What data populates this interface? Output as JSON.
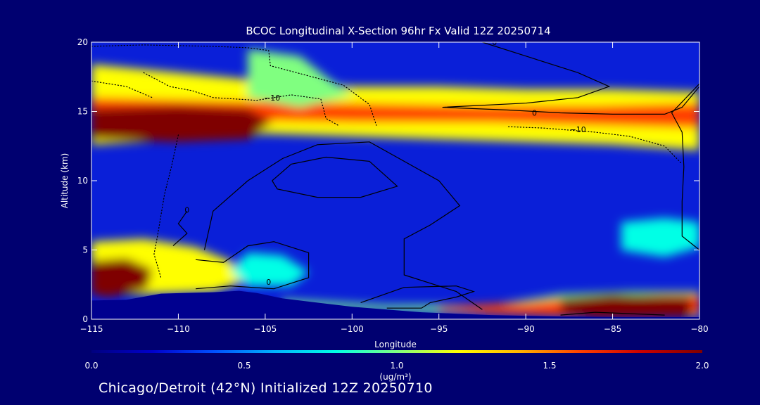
{
  "chart_data": {
    "type": "heatmap",
    "title": "BCOC Longitudinal X-Section 96hr  Fx Valid 12Z 20250714",
    "xlabel": "Longitude",
    "ylabel": "Altitude (km)",
    "xlim": [
      -115,
      -80
    ],
    "ylim": [
      0,
      20
    ],
    "x_ticks": [
      -115,
      -110,
      -105,
      -100,
      -95,
      -90,
      -85,
      -80
    ],
    "x_tick_labels": [
      "−115",
      "−110",
      "−105",
      "−100",
      "−95",
      "−90",
      "−85",
      "−80"
    ],
    "y_ticks": [
      0,
      5,
      10,
      15,
      20
    ],
    "y_tick_labels": [
      "0",
      "5",
      "10",
      "15",
      "20"
    ],
    "colorbar": {
      "min": 0.0,
      "max": 2.0,
      "ticks": [
        0.0,
        0.5,
        1.0,
        1.5,
        2.0
      ],
      "tick_labels": [
        "0.0",
        "0.5",
        "1.0",
        "1.5",
        "2.0"
      ],
      "unit_label": "(ug/m³)",
      "colors": [
        "#00007f",
        "#0000cc",
        "#0050ff",
        "#00b4ff",
        "#00ffe6",
        "#80ff80",
        "#ffff00",
        "#ffb400",
        "#ff4000",
        "#cc0000",
        "#7f0000"
      ]
    },
    "regions": [
      {
        "name": "stratospheric-band",
        "value": 1.2,
        "points": [
          [
            -115,
            18.4
          ],
          [
            -110,
            17.8
          ],
          [
            -105,
            17.2
          ],
          [
            -100,
            16.8
          ],
          [
            -95,
            16.8
          ],
          [
            -90,
            16.6
          ],
          [
            -85,
            16.6
          ],
          [
            -80,
            16.4
          ],
          [
            -80,
            12.2
          ],
          [
            -85,
            12.6
          ],
          [
            -90,
            12.8
          ],
          [
            -95,
            13.0
          ],
          [
            -100,
            13.2
          ],
          [
            -105,
            13.4
          ],
          [
            -110,
            13.0
          ],
          [
            -115,
            12.6
          ]
        ]
      },
      {
        "name": "band-core",
        "value": 1.55,
        "points": [
          [
            -115,
            16.0
          ],
          [
            -108,
            15.8
          ],
          [
            -100,
            15.6
          ],
          [
            -92,
            15.4
          ],
          [
            -86,
            15.4
          ],
          [
            -80,
            15.6
          ],
          [
            -80,
            13.8
          ],
          [
            -86,
            14.0
          ],
          [
            -92,
            14.2
          ],
          [
            -100,
            14.2
          ],
          [
            -108,
            14.4
          ],
          [
            -115,
            14.2
          ]
        ]
      },
      {
        "name": "west-hotspot",
        "value": 2.0,
        "points": [
          [
            -115,
            15.2
          ],
          [
            -110,
            15.4
          ],
          [
            -106,
            15.2
          ],
          [
            -104.6,
            14.2
          ],
          [
            -106,
            13.0
          ],
          [
            -110,
            12.8
          ],
          [
            -115,
            13.0
          ]
        ]
      },
      {
        "name": "cyan-ridge",
        "value": 0.9,
        "points": [
          [
            -106,
            19.5
          ],
          [
            -103,
            19.0
          ],
          [
            -101.5,
            17.5
          ],
          [
            -100,
            16.2
          ],
          [
            -103,
            15.3
          ],
          [
            -106,
            16.0
          ]
        ]
      },
      {
        "name": "surface-west",
        "value": 1.2,
        "points": [
          [
            -115,
            5.6
          ],
          [
            -112,
            5.8
          ],
          [
            -109,
            5.2
          ],
          [
            -107,
            4.2
          ],
          [
            -106,
            2.8
          ],
          [
            -108,
            2.0
          ],
          [
            -112,
            1.8
          ],
          [
            -115,
            2.0
          ]
        ]
      },
      {
        "name": "surface-west-core",
        "value": 1.9,
        "points": [
          [
            -115,
            4.2
          ],
          [
            -113,
            4.4
          ],
          [
            -111.5,
            3.6
          ],
          [
            -111.8,
            2.2
          ],
          [
            -114,
            1.6
          ],
          [
            -115,
            1.8
          ]
        ]
      },
      {
        "name": "plume-104",
        "value": 0.75,
        "points": [
          [
            -106,
            4.8
          ],
          [
            -104,
            4.6
          ],
          [
            -102.5,
            3.4
          ],
          [
            -103.5,
            2.4
          ],
          [
            -106,
            2.4
          ],
          [
            -107,
            3.5
          ]
        ]
      },
      {
        "name": "boundary-layer",
        "value": 1.0,
        "points": [
          [
            -104,
            1.4
          ],
          [
            -98,
            1.0
          ],
          [
            -92,
            1.0
          ],
          [
            -88,
            1.8
          ],
          [
            -84,
            2.0
          ],
          [
            -80,
            2.0
          ],
          [
            -80,
            0.2
          ],
          [
            -86,
            0.2
          ],
          [
            -92,
            0.4
          ],
          [
            -98,
            0.6
          ],
          [
            -104,
            0.9
          ]
        ]
      },
      {
        "name": "boundary-core",
        "value": 1.6,
        "points": [
          [
            -95,
            0.9
          ],
          [
            -90,
            1.2
          ],
          [
            -87,
            1.6
          ],
          [
            -82,
            1.8
          ],
          [
            -80,
            1.8
          ],
          [
            -80,
            0.3
          ],
          [
            -86,
            0.2
          ],
          [
            -92,
            0.4
          ],
          [
            -95,
            0.6
          ]
        ]
      },
      {
        "name": "east-hotspot",
        "value": 2.0,
        "points": [
          [
            -88,
            1.5
          ],
          [
            -85,
            1.8
          ],
          [
            -80.5,
            1.6
          ],
          [
            -80.5,
            0.2
          ],
          [
            -86,
            0.1
          ],
          [
            -88,
            0.5
          ]
        ]
      },
      {
        "name": "east-midlevel",
        "value": 0.75,
        "points": [
          [
            -84.5,
            7.0
          ],
          [
            -82,
            7.3
          ],
          [
            -80,
            7.0
          ],
          [
            -80,
            5.2
          ],
          [
            -82,
            4.5
          ],
          [
            -84.5,
            5.0
          ]
        ]
      }
    ],
    "contours": [
      {
        "label": "0",
        "style": "solid",
        "label_at": [
          -91.8,
          20.0
        ],
        "points": [
          [
            -92.5,
            20
          ],
          [
            -90,
            19
          ],
          [
            -87,
            17.8
          ],
          [
            -85.2,
            16.8
          ],
          [
            -87,
            16.0
          ],
          [
            -90,
            15.6
          ],
          [
            -94.8,
            15.3
          ],
          [
            -91,
            15.1
          ],
          [
            -88,
            14.9
          ],
          [
            -85,
            14.8
          ],
          [
            -82,
            14.8
          ],
          [
            -81,
            15.3
          ],
          [
            -80,
            16.8
          ]
        ]
      },
      {
        "label": "0",
        "style": "solid",
        "label_at": [
          -89.5,
          14.9
        ],
        "points": [
          [
            -80,
            17.0
          ],
          [
            -81.6,
            14.9
          ],
          [
            -81,
            13.5
          ],
          [
            -80.9,
            11.0
          ],
          [
            -81.0,
            8.5
          ],
          [
            -81.0,
            6.0
          ],
          [
            -80,
            5.0
          ]
        ]
      },
      {
        "label": "",
        "style": "solid",
        "points": [
          [
            -108.5,
            5.0
          ],
          [
            -108,
            7.8
          ],
          [
            -106,
            10.0
          ],
          [
            -104,
            11.6
          ],
          [
            -102,
            12.6
          ],
          [
            -99,
            12.8
          ],
          [
            -97,
            11.4
          ],
          [
            -95,
            10.0
          ],
          [
            -93.8,
            8.2
          ],
          [
            -95.5,
            6.8
          ],
          [
            -97,
            5.8
          ],
          [
            -97,
            3.2
          ],
          [
            -94,
            2.0
          ],
          [
            -92.5,
            0.7
          ]
        ]
      },
      {
        "label": "",
        "style": "solid",
        "points": [
          [
            -104.6,
            10.0
          ],
          [
            -103.5,
            11.2
          ],
          [
            -101.5,
            11.7
          ],
          [
            -99,
            11.4
          ],
          [
            -97.4,
            9.6
          ],
          [
            -99.5,
            8.8
          ],
          [
            -102,
            8.8
          ],
          [
            -104.3,
            9.4
          ],
          [
            -104.6,
            10.0
          ]
        ]
      },
      {
        "label": "0",
        "style": "solid",
        "label_at": [
          -104.8,
          2.7
        ],
        "points": [
          [
            -109,
            4.3
          ],
          [
            -107.4,
            4.1
          ],
          [
            -106,
            5.3
          ],
          [
            -104.5,
            5.6
          ],
          [
            -102.5,
            4.8
          ],
          [
            -102.5,
            3.0
          ],
          [
            -104.5,
            2.2
          ],
          [
            -107,
            2.4
          ],
          [
            -109,
            2.2
          ]
        ]
      },
      {
        "label": "",
        "style": "solid",
        "points": [
          [
            -99.5,
            1.2
          ],
          [
            -97,
            2.3
          ],
          [
            -94,
            2.4
          ],
          [
            -93,
            2.0
          ],
          [
            -94,
            1.6
          ],
          [
            -95.5,
            1.2
          ],
          [
            -96,
            0.8
          ],
          [
            -98,
            0.8
          ]
        ]
      },
      {
        "label": "",
        "style": "solid",
        "points": [
          [
            -88,
            0.3
          ],
          [
            -86,
            0.5
          ],
          [
            -84,
            0.4
          ],
          [
            -82,
            0.3
          ]
        ]
      },
      {
        "label": "0",
        "style": "solid",
        "label_at": [
          -109.5,
          7.9
        ],
        "points": [
          [
            -110.3,
            5.3
          ],
          [
            -109.5,
            6.2
          ],
          [
            -110,
            6.9
          ],
          [
            -109.5,
            7.8
          ]
        ]
      },
      {
        "label": "−10",
        "style": "dotted",
        "label_at": [
          -104.6,
          16.0
        ],
        "points": [
          [
            -112,
            17.8
          ],
          [
            -110.5,
            16.8
          ],
          [
            -109.2,
            16.5
          ],
          [
            -108,
            16.0
          ],
          [
            -105.5,
            15.8
          ],
          [
            -103.5,
            16.2
          ],
          [
            -101.8,
            15.9
          ],
          [
            -101.5,
            14.5
          ],
          [
            -100.8,
            14.0
          ]
        ]
      },
      {
        "label": "−10",
        "style": "dotted",
        "label_at": [
          -87.0,
          13.7
        ],
        "points": [
          [
            -91,
            13.9
          ],
          [
            -89,
            13.8
          ],
          [
            -86,
            13.5
          ],
          [
            -84,
            13.2
          ],
          [
            -82,
            12.5
          ],
          [
            -81,
            11.2
          ]
        ]
      },
      {
        "label": "",
        "style": "dotted",
        "points": [
          [
            -115,
            19.7
          ],
          [
            -112,
            19.8
          ],
          [
            -108,
            19.7
          ],
          [
            -106,
            19.6
          ],
          [
            -104.8,
            19.4
          ],
          [
            -104.7,
            18.3
          ],
          [
            -103.2,
            17.8
          ],
          [
            -100.5,
            16.9
          ],
          [
            -99,
            15.5
          ],
          [
            -98.6,
            14.0
          ]
        ]
      },
      {
        "label": "",
        "style": "dotted",
        "points": [
          [
            -115,
            17.2
          ],
          [
            -113,
            16.8
          ],
          [
            -111.5,
            16.0
          ]
        ]
      },
      {
        "label": "",
        "style": "dotted",
        "points": [
          [
            -110,
            13.3
          ],
          [
            -110.4,
            11.0
          ],
          [
            -110.8,
            9.0
          ],
          [
            -111.2,
            6.0
          ],
          [
            -111.4,
            4.7
          ],
          [
            -111,
            3.0
          ]
        ]
      }
    ],
    "terrain": [
      [
        -115,
        1.35
      ],
      [
        -113,
        1.4
      ],
      [
        -111,
        1.85
      ],
      [
        -108,
        1.95
      ],
      [
        -106.5,
        2.05
      ],
      [
        -105.5,
        1.9
      ],
      [
        -104,
        1.5
      ],
      [
        -102,
        1.2
      ],
      [
        -100,
        0.9
      ],
      [
        -98,
        0.7
      ],
      [
        -96,
        0.5
      ],
      [
        -94,
        0.4
      ],
      [
        -92,
        0.3
      ],
      [
        -90,
        0.25
      ],
      [
        -88,
        0.2
      ],
      [
        -84,
        0.15
      ],
      [
        -80,
        0.15
      ]
    ]
  },
  "footer": "Chicago/Detroit (42°N) Initialized 12Z 20250710"
}
